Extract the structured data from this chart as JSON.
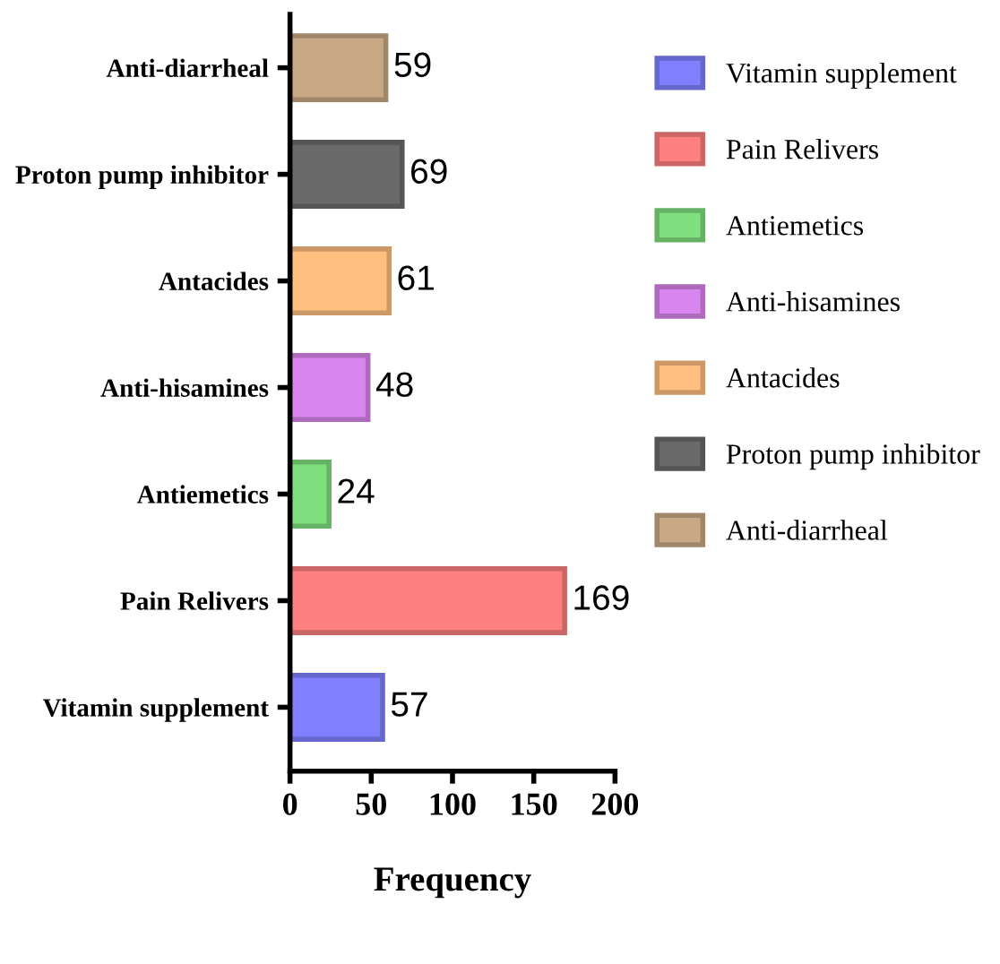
{
  "chart_data": {
    "type": "bar",
    "orientation": "horizontal",
    "xlabel": "Frequency",
    "categories": [
      "Anti-diarrheal",
      "Proton pump inhibitor",
      "Antacides",
      "Anti-hisamines",
      "Antiemetics",
      "Pain Relivers",
      "Vitamin supplement"
    ],
    "series": [
      {
        "name": "Vitamin supplement",
        "color": "#8080ff",
        "values": [
          null,
          null,
          null,
          null,
          null,
          null,
          57
        ]
      },
      {
        "name": "Pain Relivers",
        "color": "#ff8080",
        "values": [
          null,
          null,
          null,
          null,
          null,
          169,
          null
        ]
      },
      {
        "name": "Antiemetics",
        "color": "#80e080",
        "values": [
          null,
          null,
          null,
          null,
          24,
          null,
          null
        ]
      },
      {
        "name": "Anti-hisamines",
        "color": "#d986ee",
        "values": [
          null,
          null,
          null,
          48,
          null,
          null,
          null
        ]
      },
      {
        "name": "Antacides",
        "color": "#ffbf80",
        "values": [
          null,
          null,
          61,
          null,
          null,
          null,
          null
        ]
      },
      {
        "name": "Proton pump inhibitor",
        "color": "#6a6a6a",
        "values": [
          null,
          69,
          null,
          null,
          null,
          null,
          null
        ]
      },
      {
        "name": "Anti-diarrheal",
        "color": "#c9a985",
        "values": [
          59,
          null,
          null,
          null,
          null,
          null,
          null
        ]
      }
    ],
    "xlim": [
      0,
      200
    ],
    "xticks": [
      0,
      50,
      100,
      150,
      200
    ],
    "data_labels": true,
    "legend": "right"
  }
}
